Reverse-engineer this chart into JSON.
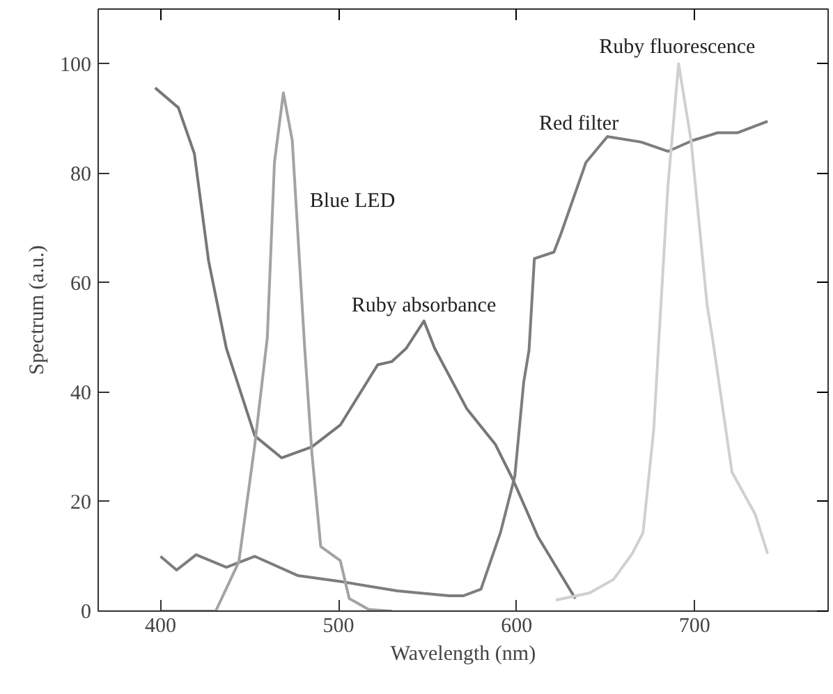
{
  "chart_data": {
    "type": "line",
    "xlabel": "Wavelength (nm)",
    "ylabel": "Spectrum (a.u.)",
    "xlim": [
      365,
      775
    ],
    "ylim": [
      0,
      110
    ],
    "xticks": [
      400,
      500,
      600,
      700
    ],
    "yticks": [
      0,
      20,
      40,
      60,
      80,
      100
    ],
    "grid": false,
    "marker": "none",
    "line_style": "solid",
    "series": [
      {
        "name": "Ruby absorbance",
        "color": "#777777",
        "x": [
          397,
          410,
          419,
          427,
          437,
          453,
          468,
          485,
          501,
          522,
          530,
          538,
          548,
          554,
          572,
          588,
          598,
          612,
          633
        ],
        "values": [
          95.6,
          92,
          83.6,
          64,
          48,
          32,
          28,
          30,
          34,
          45,
          45.6,
          48,
          53,
          48,
          37,
          30.5,
          24,
          13.6,
          2.3
        ]
      },
      {
        "name": "Red filter",
        "color": "#7d7d7d",
        "x": [
          400,
          409,
          420,
          437,
          453,
          477,
          501,
          533,
          562,
          570,
          580,
          591,
          599,
          604,
          607,
          610,
          621,
          625,
          639,
          651,
          670,
          685,
          699,
          713,
          724,
          741
        ],
        "values": [
          10,
          7.5,
          10.3,
          8,
          10,
          6.5,
          5.4,
          3.7,
          2.8,
          2.8,
          4,
          14.4,
          24.6,
          41.8,
          47.7,
          64.4,
          65.6,
          69,
          82,
          86.7,
          85.7,
          84,
          86,
          87.4,
          87.4,
          89.5
        ]
      },
      {
        "name": "Blue LED",
        "color": "#a3a3a3",
        "x": [
          400,
          431,
          444,
          453,
          460,
          464,
          469,
          474,
          481,
          485,
          490,
          501,
          506,
          517,
          530
        ],
        "values": [
          0,
          0,
          9,
          30.5,
          50,
          82,
          94.7,
          86,
          48,
          29,
          11.8,
          9.2,
          2.3,
          0.3,
          0
        ]
      },
      {
        "name": "Ruby fluorescence",
        "color": "#d0d0d0",
        "x": [
          622,
          641,
          654.5,
          665,
          671,
          677,
          680,
          685,
          691,
          698,
          707,
          710,
          721,
          734,
          741
        ],
        "values": [
          2,
          3.3,
          5.8,
          10.5,
          14.3,
          33,
          50,
          77.6,
          100,
          86,
          56,
          50,
          25.4,
          17.7,
          10.5
        ]
      }
    ]
  }
}
